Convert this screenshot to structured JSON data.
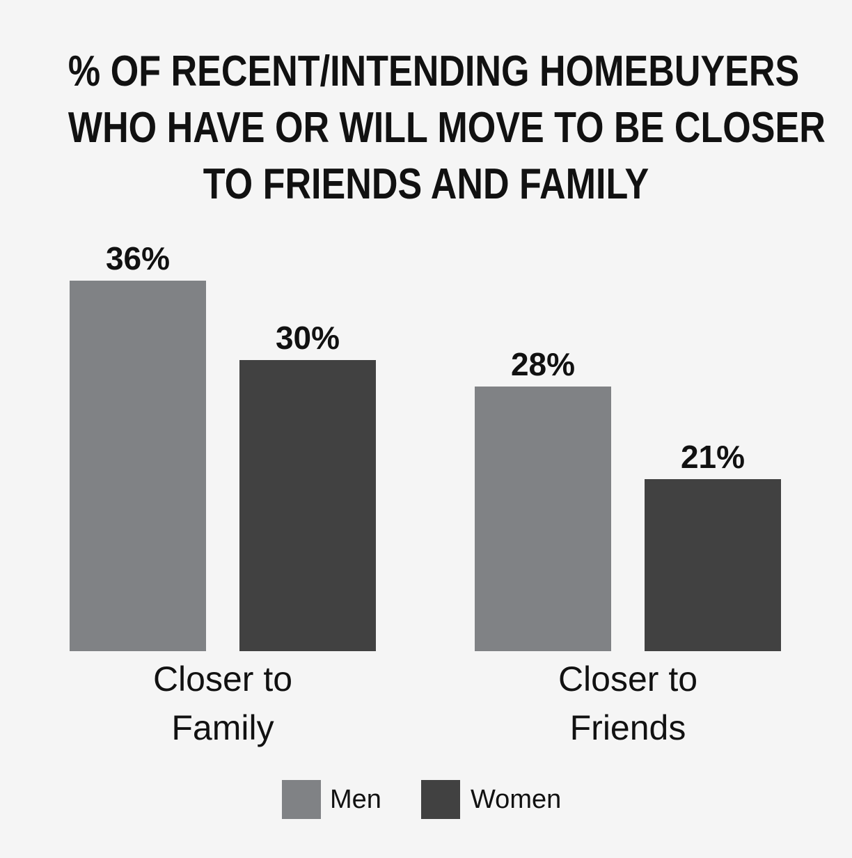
{
  "chart_data": {
    "type": "bar",
    "title": [
      "% OF RECENT/INTENDING HOMEBUYERS",
      "WHO HAVE OR WILL MOVE TO BE CLOSER",
      "TO FRIENDS AND FAMILY"
    ],
    "categories": [
      [
        "Closer to",
        "Family"
      ],
      [
        "Closer to",
        "Friends"
      ]
    ],
    "series": [
      {
        "name": "Men",
        "values": [
          36,
          28
        ],
        "labels": [
          "36%",
          "28%"
        ],
        "color": "#808285"
      },
      {
        "name": "Women",
        "values": [
          30,
          21
        ],
        "labels": [
          "30%",
          "21%"
        ],
        "color": "#414141"
      }
    ],
    "ylim": [
      8,
      36
    ],
    "grid": false,
    "legend": "bottom-center",
    "background": "#f5f5f5"
  }
}
